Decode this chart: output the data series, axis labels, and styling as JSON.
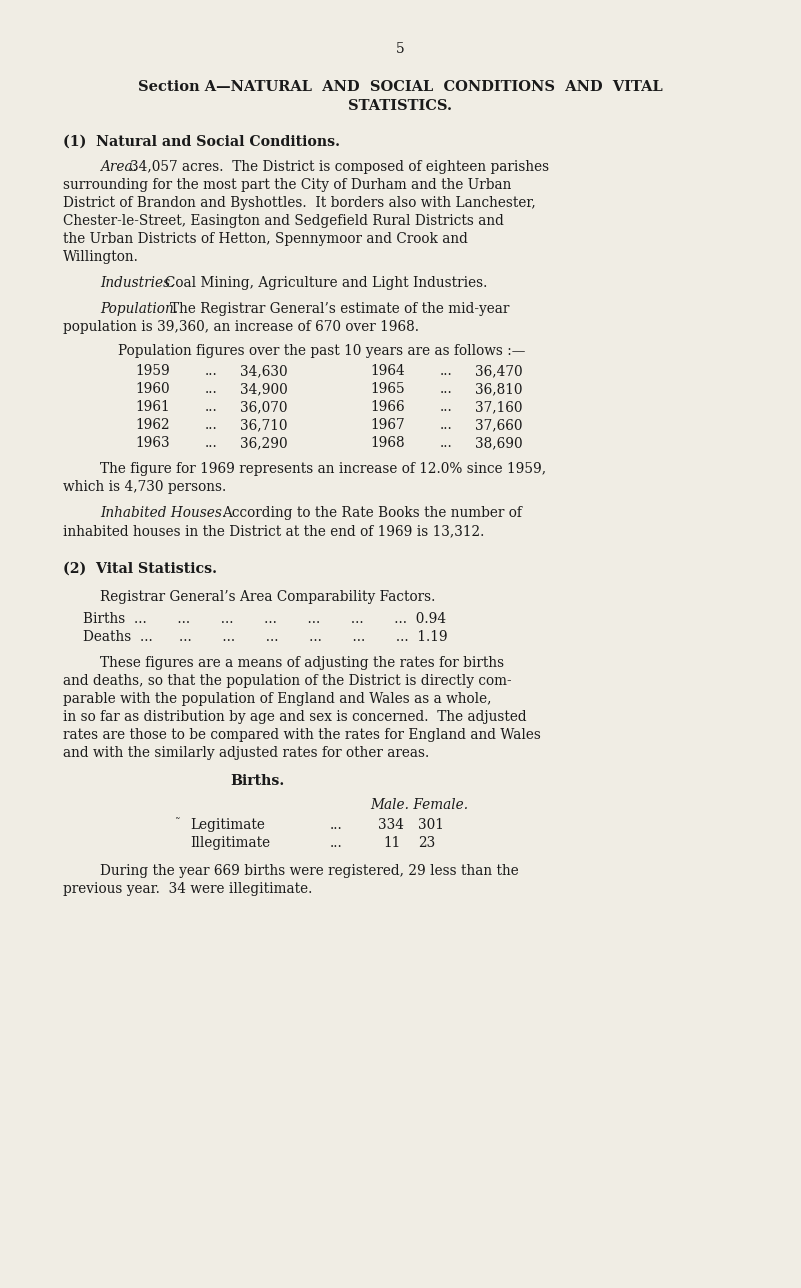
{
  "bg_color": "#f0ede4",
  "text_color": "#1a1a1a",
  "page_number": "5",
  "section_title_line1": "Section A—NATURAL  AND  SOCIAL  CONDITIONS  AND  VITAL",
  "section_title_line2": "STATISTICS.",
  "subsection1_title": "(1)  Natural and Social Conditions.",
  "subsection2_title": "(2)  Vital Statistics.",
  "pop_table": [
    [
      "1959",
      "...",
      "34,630",
      "1964",
      "...",
      "36,470"
    ],
    [
      "1960",
      "...",
      "34,900",
      "1965",
      "...",
      "36,810"
    ],
    [
      "1961",
      "...",
      "36,070",
      "1966",
      "...",
      "37,160"
    ],
    [
      "1962",
      "...",
      "36,710",
      "1967",
      "...",
      "37,660"
    ],
    [
      "1963",
      "...",
      "36,290",
      "1968",
      "...",
      "38,690"
    ]
  ],
  "legitimate_male": "334",
  "legitimate_female": "301",
  "illegitimate_male": "11",
  "illegitimate_female": "23"
}
